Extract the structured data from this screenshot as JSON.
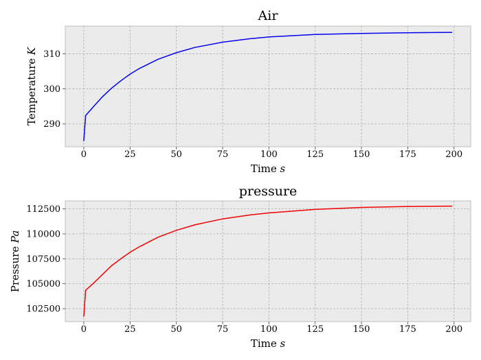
{
  "chart_data": [
    {
      "type": "line",
      "title": "Air",
      "xlabel": "Time",
      "xlabel_unit": "s",
      "ylabel": "Temperature",
      "ylabel_unit": "K",
      "xlim": [
        -10,
        209
      ],
      "ylim": [
        283.5,
        317.9
      ],
      "xticks": [
        0,
        25,
        50,
        75,
        100,
        125,
        150,
        175,
        200
      ],
      "yticks": [
        290,
        300,
        310
      ],
      "grid": true,
      "color": "#0000ee",
      "series": [
        {
          "x": [
            0,
            1,
            5,
            10,
            15,
            20,
            25,
            30,
            40,
            50,
            60,
            75,
            90,
            100,
            125,
            150,
            175,
            199
          ],
          "values": [
            285.1,
            292.4,
            294.8,
            297.7,
            300.2,
            302.3,
            304.2,
            305.8,
            308.4,
            310.3,
            311.8,
            313.3,
            314.3,
            314.8,
            315.5,
            315.8,
            316.0,
            316.1
          ]
        }
      ]
    },
    {
      "type": "line",
      "title": "pressure",
      "xlabel": "Time",
      "xlabel_unit": "s",
      "ylabel": "Pressure",
      "ylabel_unit": "Pa",
      "xlim": [
        -10,
        209
      ],
      "ylim": [
        101200,
        113300
      ],
      "xticks": [
        0,
        25,
        50,
        75,
        100,
        125,
        150,
        175,
        200
      ],
      "yticks": [
        102500,
        105000,
        107500,
        110000,
        112500
      ],
      "grid": true,
      "color": "#ee0000",
      "series": [
        {
          "x": [
            0,
            1,
            5,
            10,
            15,
            20,
            25,
            30,
            40,
            50,
            60,
            75,
            90,
            100,
            125,
            150,
            175,
            199
          ],
          "values": [
            101700,
            104350,
            105000,
            105900,
            106800,
            107500,
            108150,
            108700,
            109650,
            110350,
            110900,
            111500,
            111900,
            112100,
            112450,
            112650,
            112740,
            112780
          ]
        }
      ]
    }
  ]
}
